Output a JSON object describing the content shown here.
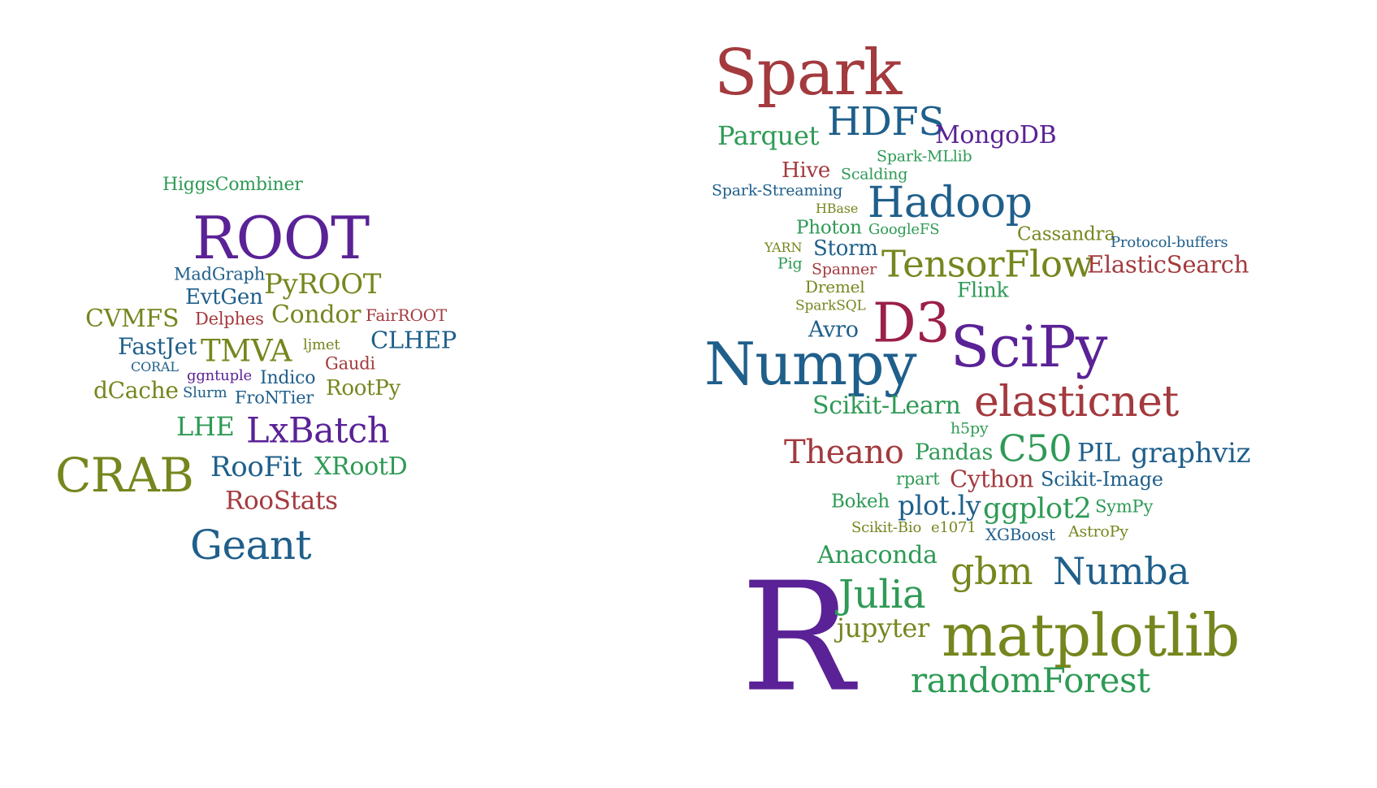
{
  "palette": {
    "red": "#a33a3e",
    "blue": "#1f5f8b",
    "green": "#2e9a55",
    "olive": "#76861e",
    "purple": "#5a2296",
    "crimson": "#9b1f4a"
  },
  "clouds": [
    {
      "name": "left",
      "words": [
        {
          "text": "HiggsCombiner",
          "color": "green",
          "size": 0.8
        },
        {
          "text": "ROOT",
          "color": "purple",
          "size": 2.4
        },
        {
          "text": "MadGraph",
          "color": "blue",
          "size": 0.8
        },
        {
          "text": "PyROOT",
          "color": "olive",
          "size": 1.2
        },
        {
          "text": "EvtGen",
          "color": "blue",
          "size": 0.95
        },
        {
          "text": "CVMFS",
          "color": "olive",
          "size": 1.05
        },
        {
          "text": "Delphes",
          "color": "red",
          "size": 0.8
        },
        {
          "text": "Condor",
          "color": "olive",
          "size": 1.05
        },
        {
          "text": "FairROOT",
          "color": "red",
          "size": 0.75
        },
        {
          "text": "FastJet",
          "color": "blue",
          "size": 1.0
        },
        {
          "text": "TMVA",
          "color": "olive",
          "size": 1.25
        },
        {
          "text": "ljmet",
          "color": "olive",
          "size": 0.65
        },
        {
          "text": "CLHEP",
          "color": "blue",
          "size": 1.05
        },
        {
          "text": "CORAL",
          "color": "blue",
          "size": 0.6
        },
        {
          "text": "Gaudi",
          "color": "red",
          "size": 0.75
        },
        {
          "text": "ggntuple",
          "color": "purple",
          "size": 0.7
        },
        {
          "text": "Indico",
          "color": "blue",
          "size": 0.8
        },
        {
          "text": "dCache",
          "color": "olive",
          "size": 1.0
        },
        {
          "text": "Slurm",
          "color": "blue",
          "size": 0.65
        },
        {
          "text": "FroNTier",
          "color": "blue",
          "size": 0.78
        },
        {
          "text": "RootPy",
          "color": "olive",
          "size": 0.9
        },
        {
          "text": "LHE",
          "color": "green",
          "size": 1.1
        },
        {
          "text": "LxBatch",
          "color": "purple",
          "size": 1.45
        },
        {
          "text": "CRAB",
          "color": "olive",
          "size": 2.0
        },
        {
          "text": "RooFit",
          "color": "blue",
          "size": 1.2
        },
        {
          "text": "XRootD",
          "color": "green",
          "size": 1.05
        },
        {
          "text": "RooStats",
          "color": "red",
          "size": 1.05
        },
        {
          "text": "Geant",
          "color": "blue",
          "size": 1.65
        }
      ]
    },
    {
      "name": "right",
      "words": [
        {
          "text": "Spark",
          "color": "red",
          "size": 2.6
        },
        {
          "text": "HDFS",
          "color": "blue",
          "size": 1.65
        },
        {
          "text": "Parquet",
          "color": "green",
          "size": 1.1
        },
        {
          "text": "MongoDB",
          "color": "purple",
          "size": 1.1
        },
        {
          "text": "Spark-MLlib",
          "color": "green",
          "size": 0.7
        },
        {
          "text": "Hive",
          "color": "red",
          "size": 0.95
        },
        {
          "text": "Scalding",
          "color": "green",
          "size": 0.7
        },
        {
          "text": "Spark-Streaming",
          "color": "blue",
          "size": 0.7
        },
        {
          "text": "Hadoop",
          "color": "blue",
          "size": 1.75
        },
        {
          "text": "HBase",
          "color": "olive",
          "size": 0.62
        },
        {
          "text": "Photon",
          "color": "green",
          "size": 0.85
        },
        {
          "text": "GoogleFS",
          "color": "green",
          "size": 0.65
        },
        {
          "text": "Cassandra",
          "color": "olive",
          "size": 0.85
        },
        {
          "text": "Protocol-buffers",
          "color": "blue",
          "size": 0.7
        },
        {
          "text": "YARN",
          "color": "olive",
          "size": 0.62
        },
        {
          "text": "Storm",
          "color": "blue",
          "size": 0.9
        },
        {
          "text": "Pig",
          "color": "green",
          "size": 0.68
        },
        {
          "text": "Spanner",
          "color": "red",
          "size": 0.68
        },
        {
          "text": "TensorFlow",
          "color": "olive",
          "size": 1.55
        },
        {
          "text": "ElasticSearch",
          "color": "red",
          "size": 1.1
        },
        {
          "text": "Dremel",
          "color": "olive",
          "size": 0.75
        },
        {
          "text": "Flink",
          "color": "green",
          "size": 0.9
        },
        {
          "text": "SparkSQL",
          "color": "olive",
          "size": 0.65
        },
        {
          "text": "D3",
          "color": "crimson",
          "size": 2.25
        },
        {
          "text": "Avro",
          "color": "blue",
          "size": 0.95
        },
        {
          "text": "SciPy",
          "color": "purple",
          "size": 2.45
        },
        {
          "text": "Numpy",
          "color": "blue",
          "size": 2.5
        },
        {
          "text": "Scikit-Learn",
          "color": "green",
          "size": 1.05
        },
        {
          "text": "elasticnet",
          "color": "red",
          "size": 1.85
        },
        {
          "text": "h5py",
          "color": "green",
          "size": 0.65
        },
        {
          "text": "Theano",
          "color": "red",
          "size": 1.35
        },
        {
          "text": "Pandas",
          "color": "green",
          "size": 0.95
        },
        {
          "text": "C50",
          "color": "green",
          "size": 1.5
        },
        {
          "text": "PIL",
          "color": "blue",
          "size": 1.05
        },
        {
          "text": "graphviz",
          "color": "blue",
          "size": 1.15
        },
        {
          "text": "rpart",
          "color": "green",
          "size": 0.75
        },
        {
          "text": "Cython",
          "color": "red",
          "size": 1.0
        },
        {
          "text": "Scikit-Image",
          "color": "blue",
          "size": 0.85
        },
        {
          "text": "Bokeh",
          "color": "green",
          "size": 0.85
        },
        {
          "text": "plot.ly",
          "color": "blue",
          "size": 1.1
        },
        {
          "text": "ggplot2",
          "color": "green",
          "size": 1.2
        },
        {
          "text": "SymPy",
          "color": "green",
          "size": 0.75
        },
        {
          "text": "Scikit-Bio",
          "color": "olive",
          "size": 0.65
        },
        {
          "text": "e1071",
          "color": "olive",
          "size": 0.65
        },
        {
          "text": "XGBoost",
          "color": "blue",
          "size": 0.7
        },
        {
          "text": "AstroPy",
          "color": "olive",
          "size": 0.65
        },
        {
          "text": "Anaconda",
          "color": "green",
          "size": 1.05
        },
        {
          "text": "gbm",
          "color": "olive",
          "size": 1.6
        },
        {
          "text": "Numba",
          "color": "blue",
          "size": 1.6
        },
        {
          "text": "R",
          "color": "purple",
          "size": 5.2
        },
        {
          "text": "Julia",
          "color": "green",
          "size": 1.6
        },
        {
          "text": "jupyter",
          "color": "olive",
          "size": 1.1
        },
        {
          "text": "matplotlib",
          "color": "olive",
          "size": 2.45
        },
        {
          "text": "randomForest",
          "color": "green",
          "size": 1.45
        }
      ]
    }
  ]
}
